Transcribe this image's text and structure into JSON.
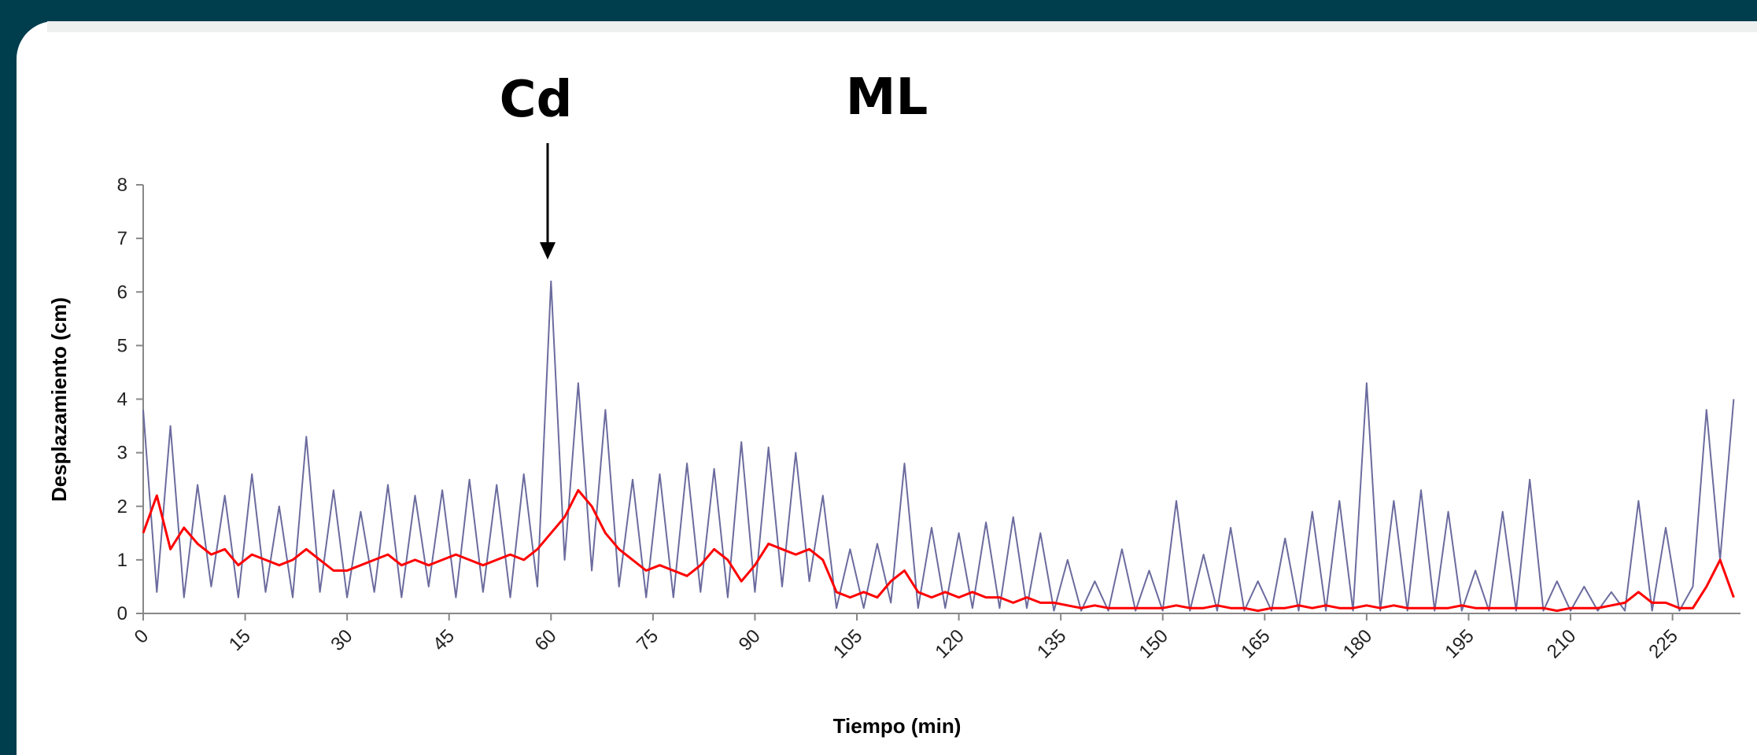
{
  "chart_data": {
    "type": "line",
    "annotations": [
      "Cd",
      "ML"
    ],
    "xlabel": "Tiempo (min)",
    "ylabel": "Desplazamiento (cm)",
    "xlim": [
      0,
      235
    ],
    "ylim": [
      0,
      8
    ],
    "xticks": [
      0,
      15,
      30,
      45,
      60,
      75,
      90,
      105,
      120,
      135,
      150,
      165,
      180,
      195,
      210,
      225
    ],
    "yticks": [
      0,
      1,
      2,
      3,
      4,
      5,
      6,
      7,
      8
    ],
    "x": [
      0,
      2,
      4,
      6,
      8,
      10,
      12,
      14,
      16,
      18,
      20,
      22,
      24,
      26,
      28,
      30,
      32,
      34,
      36,
      38,
      40,
      42,
      44,
      46,
      48,
      50,
      52,
      54,
      56,
      58,
      60,
      62,
      64,
      66,
      68,
      70,
      72,
      74,
      76,
      78,
      80,
      82,
      84,
      86,
      88,
      90,
      92,
      94,
      96,
      98,
      100,
      102,
      104,
      106,
      108,
      110,
      112,
      114,
      116,
      118,
      120,
      122,
      124,
      126,
      128,
      130,
      132,
      134,
      136,
      138,
      140,
      142,
      144,
      146,
      148,
      150,
      152,
      154,
      156,
      158,
      160,
      162,
      164,
      166,
      168,
      170,
      172,
      174,
      176,
      178,
      180,
      182,
      184,
      186,
      188,
      190,
      192,
      194,
      196,
      198,
      200,
      202,
      204,
      206,
      208,
      210,
      212,
      214,
      216,
      218,
      220,
      222,
      224,
      226,
      228,
      230,
      232,
      234
    ],
    "series": [
      {
        "color": "#6b6b9e",
        "values": [
          3.8,
          0.4,
          3.5,
          0.3,
          2.4,
          0.5,
          2.2,
          0.3,
          2.6,
          0.4,
          2.0,
          0.3,
          3.3,
          0.4,
          2.3,
          0.3,
          1.9,
          0.4,
          2.4,
          0.3,
          2.2,
          0.5,
          2.3,
          0.3,
          2.5,
          0.4,
          2.4,
          0.3,
          2.6,
          0.5,
          6.2,
          1.0,
          4.3,
          0.8,
          3.8,
          0.5,
          2.5,
          0.3,
          2.6,
          0.3,
          2.8,
          0.4,
          2.7,
          0.3,
          3.2,
          0.4,
          3.1,
          0.5,
          3.0,
          0.6,
          2.2,
          0.1,
          1.2,
          0.1,
          1.3,
          0.2,
          2.8,
          0.1,
          1.6,
          0.1,
          1.5,
          0.1,
          1.7,
          0.1,
          1.8,
          0.1,
          1.5,
          0.05,
          1.0,
          0.05,
          0.6,
          0.05,
          1.2,
          0.05,
          0.8,
          0.05,
          2.1,
          0.05,
          1.1,
          0.05,
          1.6,
          0.05,
          0.6,
          0.05,
          1.4,
          0.05,
          1.9,
          0.05,
          2.1,
          0.05,
          4.3,
          0.05,
          2.1,
          0.05,
          2.3,
          0.05,
          1.9,
          0.05,
          0.8,
          0.05,
          1.9,
          0.05,
          2.5,
          0.05,
          0.6,
          0.05,
          0.5,
          0.05,
          0.4,
          0.05,
          2.1,
          0.05,
          1.6,
          0.05,
          0.5,
          3.8,
          1.0,
          4.0
        ]
      },
      {
        "color": "#ff0000",
        "values": [
          1.5,
          2.2,
          1.2,
          1.6,
          1.3,
          1.1,
          1.2,
          0.9,
          1.1,
          1.0,
          0.9,
          1.0,
          1.2,
          1.0,
          0.8,
          0.8,
          0.9,
          1.0,
          1.1,
          0.9,
          1.0,
          0.9,
          1.0,
          1.1,
          1.0,
          0.9,
          1.0,
          1.1,
          1.0,
          1.2,
          1.5,
          1.8,
          2.3,
          2.0,
          1.5,
          1.2,
          1.0,
          0.8,
          0.9,
          0.8,
          0.7,
          0.9,
          1.2,
          1.0,
          0.6,
          0.9,
          1.3,
          1.2,
          1.1,
          1.2,
          1.0,
          0.4,
          0.3,
          0.4,
          0.3,
          0.6,
          0.8,
          0.4,
          0.3,
          0.4,
          0.3,
          0.4,
          0.3,
          0.3,
          0.2,
          0.3,
          0.2,
          0.2,
          0.15,
          0.1,
          0.15,
          0.1,
          0.1,
          0.1,
          0.1,
          0.1,
          0.15,
          0.1,
          0.1,
          0.15,
          0.1,
          0.1,
          0.05,
          0.1,
          0.1,
          0.15,
          0.1,
          0.15,
          0.1,
          0.1,
          0.15,
          0.1,
          0.15,
          0.1,
          0.1,
          0.1,
          0.1,
          0.15,
          0.1,
          0.1,
          0.1,
          0.1,
          0.1,
          0.1,
          0.05,
          0.1,
          0.1,
          0.1,
          0.15,
          0.2,
          0.4,
          0.2,
          0.2,
          0.1,
          0.1,
          0.5,
          1.0,
          0.3
        ]
      }
    ]
  }
}
